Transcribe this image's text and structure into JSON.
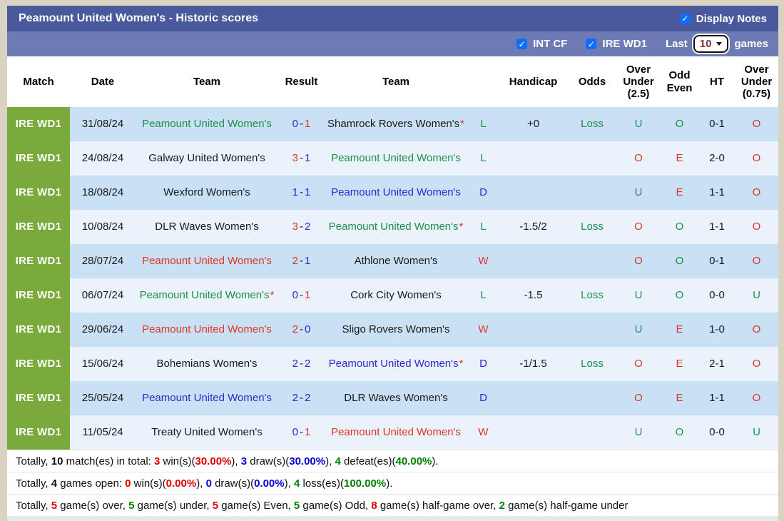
{
  "header": {
    "title": "Peamount United Women's - Historic scores",
    "display_notes_label": "Display Notes",
    "filters": {
      "int_cf_label": "INT CF",
      "ire_wd1_label": "IRE WD1",
      "last_label": "Last",
      "last_games_value": "10",
      "games_label": "games"
    }
  },
  "colors": {
    "titlebar": "#4a589c",
    "filterbar": "#6e7ab4",
    "league_badge": "#7aa93c",
    "row_odd": "#c8e1f4",
    "row_even": "#eaf2fb",
    "win_red": "#e03329",
    "draw_blue": "#2a2ad0",
    "loss_green": "#1f8f49"
  },
  "table": {
    "columns": [
      "Match",
      "Date",
      "Team",
      "Result",
      "Team",
      "",
      "Handicap",
      "Odds",
      "Over\nUnder\n(2.5)",
      "Odd\nEven",
      "HT",
      "Over\nUnder\n(0.75)"
    ],
    "rows": [
      {
        "league": "IRE WD1",
        "date": "31/08/24",
        "home": {
          "name": "Peamount United Women's",
          "color": "green",
          "star": false
        },
        "score": {
          "h": "0",
          "a": "1",
          "hc": "blue",
          "ac": "red"
        },
        "away": {
          "name": "Shamrock Rovers Women's",
          "color": "black",
          "star": true
        },
        "wdl": {
          "t": "L",
          "c": "green"
        },
        "handicap": "+0",
        "odds": {
          "t": "Loss",
          "c": "green"
        },
        "ou25": {
          "t": "U",
          "c": "green"
        },
        "oe": {
          "t": "O",
          "c": "green"
        },
        "ht": "0-1",
        "ou075": {
          "t": "O",
          "c": "red"
        }
      },
      {
        "league": "IRE WD1",
        "date": "24/08/24",
        "home": {
          "name": "Galway United Women's",
          "color": "black",
          "star": false
        },
        "score": {
          "h": "3",
          "a": "1",
          "hc": "red",
          "ac": "blue"
        },
        "away": {
          "name": "Peamount United Women's",
          "color": "green",
          "star": false
        },
        "wdl": {
          "t": "L",
          "c": "green"
        },
        "handicap": "",
        "odds": {
          "t": "",
          "c": "black"
        },
        "ou25": {
          "t": "O",
          "c": "red"
        },
        "oe": {
          "t": "E",
          "c": "red"
        },
        "ht": "2-0",
        "ou075": {
          "t": "O",
          "c": "red"
        }
      },
      {
        "league": "IRE WD1",
        "date": "18/08/24",
        "home": {
          "name": "Wexford Women's",
          "color": "black",
          "star": false
        },
        "score": {
          "h": "1",
          "a": "1",
          "hc": "blue",
          "ac": "blue"
        },
        "away": {
          "name": "Peamount United Women's",
          "color": "blue",
          "star": false
        },
        "wdl": {
          "t": "D",
          "c": "blue"
        },
        "handicap": "",
        "odds": {
          "t": "",
          "c": "black"
        },
        "ou25": {
          "t": "U",
          "c": "green"
        },
        "oe": {
          "t": "E",
          "c": "red"
        },
        "ht": "1-1",
        "ou075": {
          "t": "O",
          "c": "red"
        }
      },
      {
        "league": "IRE WD1",
        "date": "10/08/24",
        "home": {
          "name": "DLR Waves Women's",
          "color": "black",
          "star": false
        },
        "score": {
          "h": "3",
          "a": "2",
          "hc": "red",
          "ac": "blue"
        },
        "away": {
          "name": "Peamount United Women's",
          "color": "green",
          "star": true
        },
        "wdl": {
          "t": "L",
          "c": "green"
        },
        "handicap": "-1.5/2",
        "odds": {
          "t": "Loss",
          "c": "green"
        },
        "ou25": {
          "t": "O",
          "c": "red"
        },
        "oe": {
          "t": "O",
          "c": "green"
        },
        "ht": "1-1",
        "ou075": {
          "t": "O",
          "c": "red"
        }
      },
      {
        "league": "IRE WD1",
        "date": "28/07/24",
        "home": {
          "name": "Peamount United Women's",
          "color": "red",
          "star": false
        },
        "score": {
          "h": "2",
          "a": "1",
          "hc": "red",
          "ac": "blue"
        },
        "away": {
          "name": "Athlone Women's",
          "color": "black",
          "star": false
        },
        "wdl": {
          "t": "W",
          "c": "red"
        },
        "handicap": "",
        "odds": {
          "t": "",
          "c": "black"
        },
        "ou25": {
          "t": "O",
          "c": "red"
        },
        "oe": {
          "t": "O",
          "c": "green"
        },
        "ht": "0-1",
        "ou075": {
          "t": "O",
          "c": "red"
        }
      },
      {
        "league": "IRE WD1",
        "date": "06/07/24",
        "home": {
          "name": "Peamount United Women's",
          "color": "green",
          "star": true
        },
        "score": {
          "h": "0",
          "a": "1",
          "hc": "blue",
          "ac": "red"
        },
        "away": {
          "name": "Cork City Women's",
          "color": "black",
          "star": false
        },
        "wdl": {
          "t": "L",
          "c": "green"
        },
        "handicap": "-1.5",
        "odds": {
          "t": "Loss",
          "c": "green"
        },
        "ou25": {
          "t": "U",
          "c": "green"
        },
        "oe": {
          "t": "O",
          "c": "green"
        },
        "ht": "0-0",
        "ou075": {
          "t": "U",
          "c": "green"
        }
      },
      {
        "league": "IRE WD1",
        "date": "29/06/24",
        "home": {
          "name": "Peamount United Women's",
          "color": "red",
          "star": false
        },
        "score": {
          "h": "2",
          "a": "0",
          "hc": "red",
          "ac": "blue"
        },
        "away": {
          "name": "Sligo Rovers Women's",
          "color": "black",
          "star": false
        },
        "wdl": {
          "t": "W",
          "c": "red"
        },
        "handicap": "",
        "odds": {
          "t": "",
          "c": "black"
        },
        "ou25": {
          "t": "U",
          "c": "green"
        },
        "oe": {
          "t": "E",
          "c": "red"
        },
        "ht": "1-0",
        "ou075": {
          "t": "O",
          "c": "red"
        }
      },
      {
        "league": "IRE WD1",
        "date": "15/06/24",
        "home": {
          "name": "Bohemians Women's",
          "color": "black",
          "star": false
        },
        "score": {
          "h": "2",
          "a": "2",
          "hc": "blue",
          "ac": "blue"
        },
        "away": {
          "name": "Peamount United Women's",
          "color": "blue",
          "star": true
        },
        "wdl": {
          "t": "D",
          "c": "blue"
        },
        "handicap": "-1/1.5",
        "odds": {
          "t": "Loss",
          "c": "green"
        },
        "ou25": {
          "t": "O",
          "c": "red"
        },
        "oe": {
          "t": "E",
          "c": "red"
        },
        "ht": "2-1",
        "ou075": {
          "t": "O",
          "c": "red"
        }
      },
      {
        "league": "IRE WD1",
        "date": "25/05/24",
        "home": {
          "name": "Peamount United Women's",
          "color": "blue",
          "star": false
        },
        "score": {
          "h": "2",
          "a": "2",
          "hc": "blue",
          "ac": "blue"
        },
        "away": {
          "name": "DLR Waves Women's",
          "color": "black",
          "star": false
        },
        "wdl": {
          "t": "D",
          "c": "blue"
        },
        "handicap": "",
        "odds": {
          "t": "",
          "c": "black"
        },
        "ou25": {
          "t": "O",
          "c": "red"
        },
        "oe": {
          "t": "E",
          "c": "red"
        },
        "ht": "1-1",
        "ou075": {
          "t": "O",
          "c": "red"
        }
      },
      {
        "league": "IRE WD1",
        "date": "11/05/24",
        "home": {
          "name": "Treaty United Women's",
          "color": "black",
          "star": false
        },
        "score": {
          "h": "0",
          "a": "1",
          "hc": "blue",
          "ac": "red"
        },
        "away": {
          "name": "Peamount United Women's",
          "color": "red",
          "star": false
        },
        "wdl": {
          "t": "W",
          "c": "red"
        },
        "handicap": "",
        "odds": {
          "t": "",
          "c": "black"
        },
        "ou25": {
          "t": "U",
          "c": "green"
        },
        "oe": {
          "t": "O",
          "c": "green"
        },
        "ht": "0-0",
        "ou075": {
          "t": "U",
          "c": "green"
        }
      }
    ]
  },
  "footer": {
    "lines": [
      [
        {
          "text": "Totally, ",
          "color": "black",
          "bold": false
        },
        {
          "text": "10",
          "color": "black",
          "bold": true
        },
        {
          "text": " match(es) in total: ",
          "color": "black",
          "bold": false
        },
        {
          "text": "3",
          "color": "red",
          "bold": true
        },
        {
          "text": " win(s)(",
          "color": "black",
          "bold": false
        },
        {
          "text": "30.00%",
          "color": "red",
          "bold": true
        },
        {
          "text": "), ",
          "color": "black",
          "bold": false
        },
        {
          "text": "3",
          "color": "blue",
          "bold": true
        },
        {
          "text": " draw(s)(",
          "color": "black",
          "bold": false
        },
        {
          "text": "30.00%",
          "color": "blue",
          "bold": true
        },
        {
          "text": "), ",
          "color": "black",
          "bold": false
        },
        {
          "text": "4",
          "color": "green",
          "bold": true
        },
        {
          "text": " defeat(es)(",
          "color": "black",
          "bold": false
        },
        {
          "text": "40.00%",
          "color": "green",
          "bold": true
        },
        {
          "text": ").",
          "color": "black",
          "bold": false
        }
      ],
      [
        {
          "text": "Totally, ",
          "color": "black",
          "bold": false
        },
        {
          "text": "4",
          "color": "black",
          "bold": true
        },
        {
          "text": " games open: ",
          "color": "black",
          "bold": false
        },
        {
          "text": "0",
          "color": "red",
          "bold": true
        },
        {
          "text": " win(s)(",
          "color": "black",
          "bold": false
        },
        {
          "text": "0.00%",
          "color": "red",
          "bold": true
        },
        {
          "text": "), ",
          "color": "black",
          "bold": false
        },
        {
          "text": "0",
          "color": "blue",
          "bold": true
        },
        {
          "text": " draw(s)(",
          "color": "black",
          "bold": false
        },
        {
          "text": "0.00%",
          "color": "blue",
          "bold": true
        },
        {
          "text": "), ",
          "color": "black",
          "bold": false
        },
        {
          "text": "4",
          "color": "green",
          "bold": true
        },
        {
          "text": " loss(es)(",
          "color": "black",
          "bold": false
        },
        {
          "text": "100.00%",
          "color": "green",
          "bold": true
        },
        {
          "text": ").",
          "color": "black",
          "bold": false
        }
      ],
      [
        {
          "text": "Totally, ",
          "color": "black",
          "bold": false
        },
        {
          "text": "5",
          "color": "red",
          "bold": true
        },
        {
          "text": " game(s) over, ",
          "color": "black",
          "bold": false
        },
        {
          "text": "5",
          "color": "green",
          "bold": true
        },
        {
          "text": " game(s) under, ",
          "color": "black",
          "bold": false
        },
        {
          "text": "5",
          "color": "red",
          "bold": true
        },
        {
          "text": " game(s) Even, ",
          "color": "black",
          "bold": false
        },
        {
          "text": "5",
          "color": "green",
          "bold": true
        },
        {
          "text": " game(s) Odd, ",
          "color": "black",
          "bold": false
        },
        {
          "text": "8",
          "color": "red",
          "bold": true
        },
        {
          "text": " game(s) half-game over, ",
          "color": "black",
          "bold": false
        },
        {
          "text": "2",
          "color": "green",
          "bold": true
        },
        {
          "text": " game(s) half-game under",
          "color": "black",
          "bold": false
        }
      ]
    ]
  }
}
